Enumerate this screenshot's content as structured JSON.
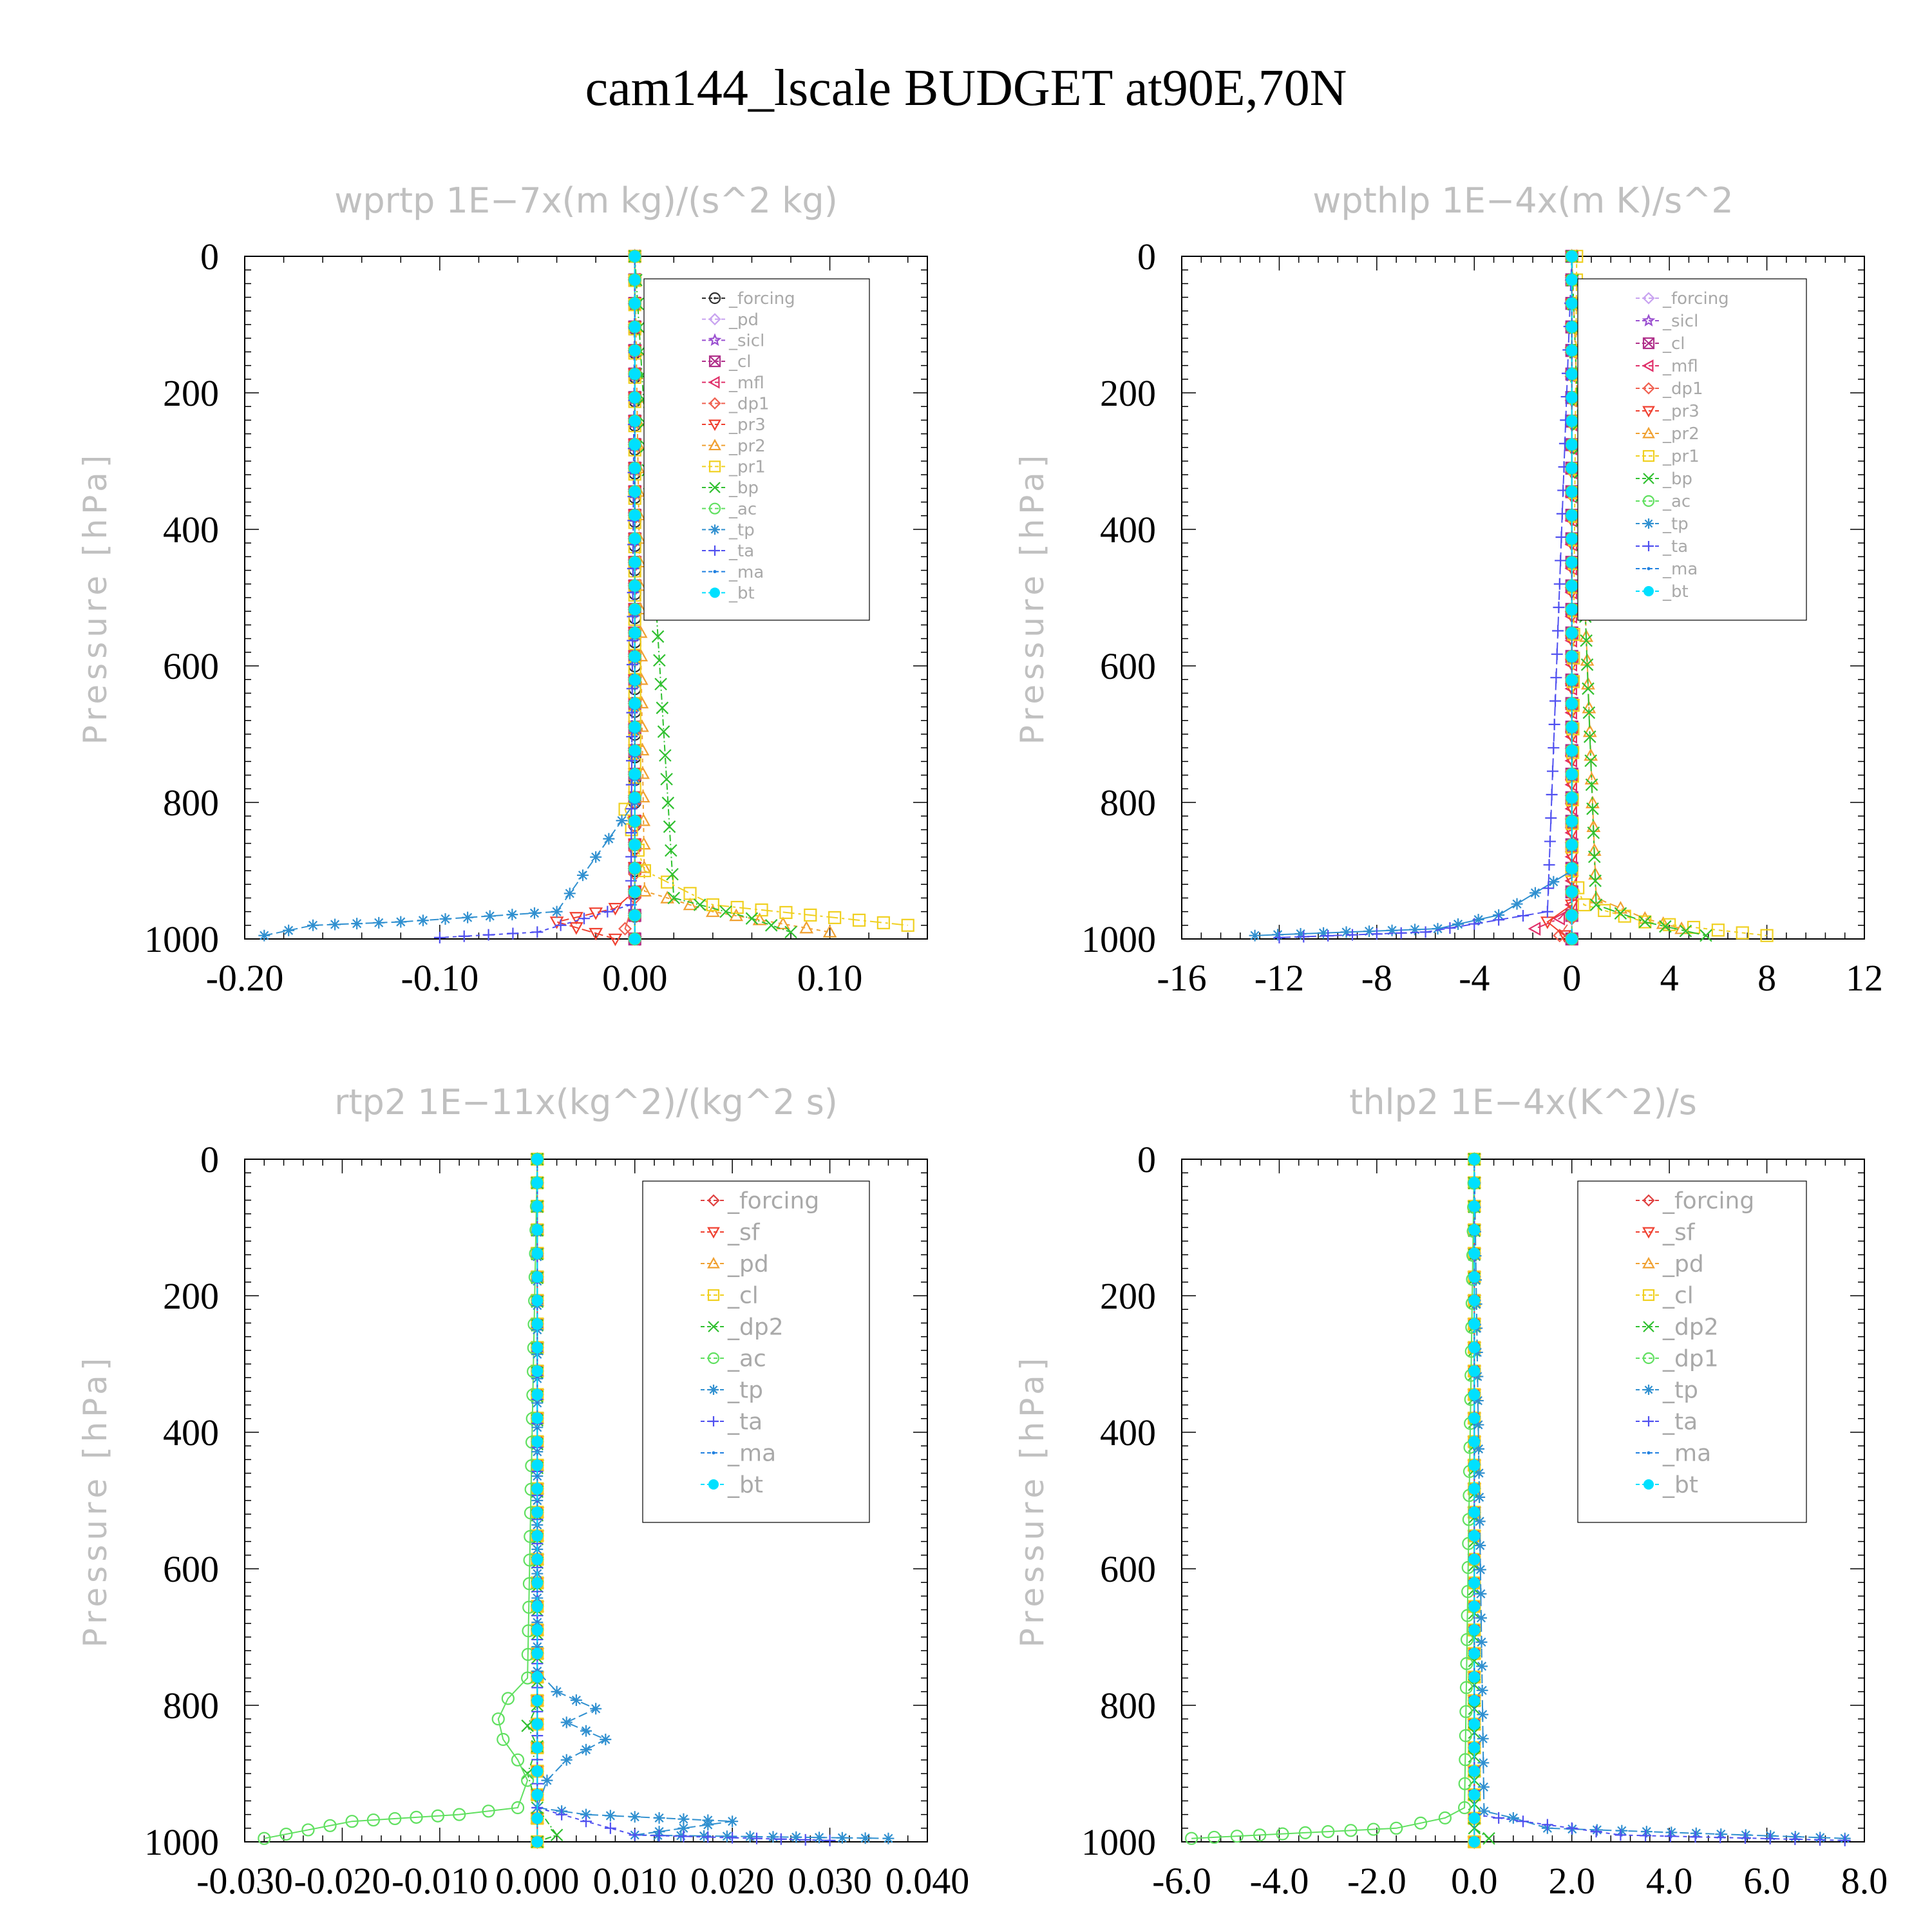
{
  "figure_title": "cam144_lscale  BUDGET at90E,70N",
  "colors": {
    "forcing_black": "#303030",
    "pd": "#c8a2f0",
    "sicl": "#9a4fd0",
    "cl": "#b0308a",
    "mfl": "#e0306a",
    "dp1": "#f06050",
    "pr3": "#f04030",
    "pr2": "#f0a030",
    "pr1": "#f0d020",
    "bp": "#30c030",
    "ac": "#60e060",
    "tp": "#3090d0",
    "ta": "#5050f0",
    "ma": "#2080e0",
    "bt": "#00e0ff",
    "red": "#e04040"
  },
  "chart_data": [
    {
      "type": "line",
      "title": "wprtp   1E−7x(m kg)/(s^2 kg)",
      "ylabel": "Pressure [hPa]",
      "xlim": [
        -0.2,
        0.15
      ],
      "ylim": [
        1000,
        0
      ],
      "xticks": [
        -0.2,
        -0.1,
        0.0,
        0.1
      ],
      "xtick_labels": [
        "-0.20",
        "-0.10",
        "0.00",
        "0.10"
      ],
      "yticks": [
        0,
        200,
        400,
        600,
        800,
        1000
      ],
      "legend": "top-right",
      "series": [
        {
          "name": "_forcing",
          "color": "#303030",
          "marker": "circle-dot",
          "x": [
            0,
            0,
            0,
            0
          ],
          "y": [
            0,
            600,
            900,
            1000
          ]
        },
        {
          "name": "_pd",
          "color": "#c8a2f0",
          "marker": "diamond",
          "x": [
            0,
            0
          ],
          "y": [
            0,
            1000
          ]
        },
        {
          "name": "_sicl",
          "color": "#9a4fd0",
          "marker": "star",
          "x": [
            0,
            0
          ],
          "y": [
            0,
            1000
          ]
        },
        {
          "name": "_cl",
          "color": "#b0308a",
          "marker": "square-x",
          "x": [
            0,
            0
          ],
          "y": [
            0,
            1000
          ]
        },
        {
          "name": "_mfl",
          "color": "#e0306a",
          "marker": "tri-left",
          "x": [
            0,
            0
          ],
          "y": [
            0,
            1000
          ]
        },
        {
          "name": "_dp1",
          "color": "#f06050",
          "marker": "diamond",
          "x": [
            0,
            0,
            -0.005,
            0
          ],
          "y": [
            0,
            940,
            985,
            1000
          ]
        },
        {
          "name": "_pr3",
          "color": "#f04030",
          "marker": "tri-down",
          "x": [
            0,
            0,
            -0.01,
            -0.04,
            -0.01
          ],
          "y": [
            0,
            930,
            955,
            975,
            1000
          ]
        },
        {
          "name": "_pr2",
          "color": "#f0a030",
          "marker": "tri-up",
          "x": [
            0,
            0.005,
            0.04,
            0.1
          ],
          "y": [
            0,
            930,
            960,
            990
          ]
        },
        {
          "name": "_pr1",
          "color": "#f0d020",
          "marker": "square",
          "x": [
            0,
            0,
            -0.005,
            0.005,
            0.04,
            0.14
          ],
          "y": [
            0,
            780,
            810,
            900,
            950,
            980
          ]
        },
        {
          "name": "_bp",
          "color": "#30c030",
          "marker": "x",
          "x": [
            0,
            0.02,
            0.06,
            0.08
          ],
          "y": [
            0,
            940,
            970,
            990
          ]
        },
        {
          "name": "_ac",
          "color": "#60e060",
          "marker": "circle",
          "x": [
            0,
            0
          ],
          "y": [
            0,
            1000
          ]
        },
        {
          "name": "_tp",
          "color": "#3090d0",
          "marker": "asterisk",
          "x": [
            0,
            0,
            -0.04,
            -0.12,
            -0.165,
            -0.19
          ],
          "y": [
            0,
            800,
            960,
            975,
            980,
            995
          ]
        },
        {
          "name": "_ta",
          "color": "#5050f0",
          "marker": "plus",
          "x": [
            0,
            -0.002,
            -0.05,
            -0.1
          ],
          "y": [
            0,
            950,
            990,
            998
          ]
        },
        {
          "name": "_ma",
          "color": "#2080e0",
          "marker": "dot",
          "x": [
            0,
            0
          ],
          "y": [
            0,
            1000
          ]
        },
        {
          "name": "_bt",
          "color": "#00e0ff",
          "marker": "filled-circle",
          "x": [
            0,
            0
          ],
          "y": [
            0,
            1000
          ]
        }
      ]
    },
    {
      "type": "line",
      "title": "wpthlp   1E−4x(m K)/s^2",
      "ylabel": "Pressure [hPa]",
      "xlim": [
        -16,
        12
      ],
      "ylim": [
        1000,
        0
      ],
      "xticks": [
        -16,
        -12,
        -8,
        -4,
        0,
        4,
        8,
        12
      ],
      "xtick_labels": [
        "-16",
        "-12",
        "-8",
        "-4",
        "0",
        "4",
        "8",
        "12"
      ],
      "yticks": [
        0,
        200,
        400,
        600,
        800,
        1000
      ],
      "legend": "top-right",
      "series": [
        {
          "name": "_forcing",
          "color": "#c8a2f0",
          "marker": "diamond",
          "x": [
            0,
            0
          ],
          "y": [
            0,
            1000
          ]
        },
        {
          "name": "_sicl",
          "color": "#9a4fd0",
          "marker": "star",
          "x": [
            0,
            0
          ],
          "y": [
            0,
            1000
          ]
        },
        {
          "name": "_cl",
          "color": "#b0308a",
          "marker": "square-x",
          "x": [
            0,
            0
          ],
          "y": [
            0,
            1000
          ]
        },
        {
          "name": "_mfl",
          "color": "#e0306a",
          "marker": "tri-left",
          "x": [
            0,
            0,
            -0.5,
            -1.5
          ],
          "y": [
            0,
            950,
            970,
            985
          ]
        },
        {
          "name": "_dp1",
          "color": "#f06050",
          "marker": "diamond",
          "x": [
            0,
            0,
            -0.5
          ],
          "y": [
            0,
            970,
            995
          ]
        },
        {
          "name": "_pr3",
          "color": "#f04030",
          "marker": "tri-down",
          "x": [
            0,
            0,
            -1,
            -0.3
          ],
          "y": [
            0,
            950,
            975,
            995
          ]
        },
        {
          "name": "_pr2",
          "color": "#f0a030",
          "marker": "tri-up",
          "x": [
            0,
            1,
            3,
            4.5
          ],
          "y": [
            0,
            940,
            970,
            985
          ]
        },
        {
          "name": "_pr1",
          "color": "#f0d020",
          "marker": "square",
          "x": [
            0.2,
            0,
            0.5,
            3,
            8
          ],
          "y": [
            0,
            900,
            950,
            975,
            995
          ]
        },
        {
          "name": "_bp",
          "color": "#30c030",
          "marker": "x",
          "x": [
            0,
            1,
            3,
            5.5
          ],
          "y": [
            0,
            950,
            975,
            995
          ]
        },
        {
          "name": "_ac",
          "color": "#60e060",
          "marker": "circle",
          "x": [
            0,
            0
          ],
          "y": [
            0,
            1000
          ]
        },
        {
          "name": "_tp",
          "color": "#3090d0",
          "marker": "asterisk",
          "x": [
            0,
            0,
            -3,
            -5.5,
            -13
          ],
          "y": [
            0,
            900,
            965,
            985,
            995
          ]
        },
        {
          "name": "_ta",
          "color": "#5050f0",
          "marker": "plus",
          "x": [
            0,
            -1,
            -6,
            -12
          ],
          "y": [
            0,
            960,
            990,
            998
          ]
        },
        {
          "name": "_ma",
          "color": "#2080e0",
          "marker": "dot",
          "x": [
            0,
            0
          ],
          "y": [
            0,
            1000
          ]
        },
        {
          "name": "_bt",
          "color": "#00e0ff",
          "marker": "filled-circle",
          "x": [
            0,
            0
          ],
          "y": [
            0,
            1000
          ]
        }
      ]
    },
    {
      "type": "line",
      "title": "rtp2   1E−11x(kg^2)/(kg^2 s)",
      "ylabel": "Pressure [hPa]",
      "xlim": [
        -0.03,
        0.04
      ],
      "ylim": [
        1000,
        0
      ],
      "xticks": [
        -0.03,
        -0.02,
        -0.01,
        0.0,
        0.01,
        0.02,
        0.03,
        0.04
      ],
      "xtick_labels": [
        "-0.030",
        "-0.020",
        "-0.010",
        "0.000",
        "0.010",
        "0.020",
        "0.030",
        "0.040"
      ],
      "yticks": [
        0,
        200,
        400,
        600,
        800,
        1000
      ],
      "legend": "top-right",
      "series": [
        {
          "name": "_forcing",
          "color": "#e04040",
          "marker": "diamond",
          "x": [
            0,
            0
          ],
          "y": [
            0,
            1000
          ]
        },
        {
          "name": "_sf",
          "color": "#f04030",
          "marker": "tri-down",
          "x": [
            0,
            0
          ],
          "y": [
            0,
            1000
          ]
        },
        {
          "name": "_pd",
          "color": "#f0a030",
          "marker": "tri-up",
          "x": [
            0,
            0
          ],
          "y": [
            0,
            1000
          ]
        },
        {
          "name": "_cl",
          "color": "#f0d020",
          "marker": "square",
          "x": [
            0,
            0
          ],
          "y": [
            0,
            1000
          ]
        },
        {
          "name": "_dp2",
          "color": "#30c030",
          "marker": "x",
          "x": [
            0,
            0,
            -0.001,
            0,
            -0.001,
            0,
            0.002,
            0
          ],
          "y": [
            0,
            800,
            830,
            860,
            900,
            950,
            990,
            1000
          ]
        },
        {
          "name": "_ac",
          "color": "#60e060",
          "marker": "circle",
          "x": [
            0,
            -0.001,
            -0.003,
            -0.004,
            -0.0035,
            -0.002,
            -0.001,
            -0.002,
            -0.008,
            -0.019,
            -0.028
          ],
          "y": [
            0,
            760,
            790,
            820,
            850,
            880,
            910,
            950,
            960,
            970,
            995
          ]
        },
        {
          "name": "_tp",
          "color": "#3090d0",
          "marker": "asterisk",
          "x": [
            0,
            0,
            0.002,
            0.006,
            0.003,
            0.007,
            0.003,
            0.001,
            0.0,
            0.005,
            0.02,
            0.01,
            0.036
          ],
          "y": [
            0,
            750,
            780,
            805,
            825,
            850,
            880,
            910,
            950,
            960,
            970,
            990,
            995
          ]
        },
        {
          "name": "_ta",
          "color": "#5050f0",
          "marker": "plus",
          "x": [
            0,
            0,
            0.01,
            0.03
          ],
          "y": [
            0,
            950,
            990,
            998
          ]
        },
        {
          "name": "_ma",
          "color": "#2080e0",
          "marker": "dot",
          "x": [
            0,
            0
          ],
          "y": [
            0,
            1000
          ]
        },
        {
          "name": "_bt",
          "color": "#00e0ff",
          "marker": "filled-circle",
          "x": [
            0,
            0
          ],
          "y": [
            0,
            1000
          ]
        }
      ]
    },
    {
      "type": "line",
      "title": "thlp2   1E−4x(K^2)/s",
      "ylabel": "Pressure [hPa]",
      "xlim": [
        -6,
        8
      ],
      "ylim": [
        1000,
        0
      ],
      "xticks": [
        -6,
        -4,
        -2,
        0,
        2,
        4,
        6,
        8
      ],
      "xtick_labels": [
        "-6.0",
        "-4.0",
        "-2.0",
        "0.0",
        "2.0",
        "4.0",
        "6.0",
        "8.0"
      ],
      "yticks": [
        0,
        200,
        400,
        600,
        800,
        1000
      ],
      "legend": "top-right",
      "series": [
        {
          "name": "_forcing",
          "color": "#e04040",
          "marker": "diamond",
          "x": [
            0,
            0
          ],
          "y": [
            0,
            1000
          ]
        },
        {
          "name": "_sf",
          "color": "#f04030",
          "marker": "tri-down",
          "x": [
            0,
            0
          ],
          "y": [
            0,
            1000
          ]
        },
        {
          "name": "_pd",
          "color": "#f0a030",
          "marker": "tri-up",
          "x": [
            0,
            0
          ],
          "y": [
            0,
            1000
          ]
        },
        {
          "name": "_cl",
          "color": "#f0d020",
          "marker": "square",
          "x": [
            0,
            0
          ],
          "y": [
            0,
            1000
          ]
        },
        {
          "name": "_dp2",
          "color": "#30c030",
          "marker": "x",
          "x": [
            0,
            0,
            0.3
          ],
          "y": [
            0,
            980,
            995
          ]
        },
        {
          "name": "_dp1",
          "color": "#60e060",
          "marker": "circle",
          "x": [
            0,
            -0.2,
            -0.6,
            -1.6,
            -5.8
          ],
          "y": [
            0,
            950,
            965,
            980,
            995
          ]
        },
        {
          "name": "_tp",
          "color": "#3090d0",
          "marker": "asterisk",
          "x": [
            0,
            0.2,
            0.8,
            1.5,
            7.6
          ],
          "y": [
            0,
            955,
            965,
            980,
            995
          ]
        },
        {
          "name": "_ta",
          "color": "#5050f0",
          "marker": "plus",
          "x": [
            0,
            0,
            3,
            7.6
          ],
          "y": [
            0,
            960,
            990,
            998
          ]
        },
        {
          "name": "_ma",
          "color": "#2080e0",
          "marker": "dot",
          "x": [
            0,
            0
          ],
          "y": [
            0,
            1000
          ]
        },
        {
          "name": "_bt",
          "color": "#00e0ff",
          "marker": "filled-circle",
          "x": [
            0,
            0
          ],
          "y": [
            0,
            1000
          ]
        }
      ]
    }
  ]
}
